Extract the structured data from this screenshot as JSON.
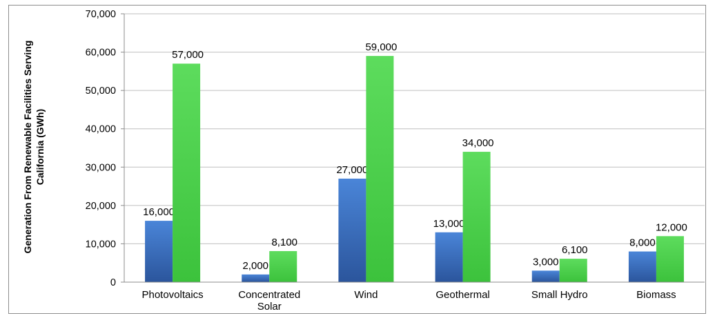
{
  "chart_data": {
    "type": "bar",
    "title": "",
    "ylabel": "Generation From Renewable Facilities Serving California (GWh)",
    "ylabel_lines": [
      "Generation From Renewable Facilities Serving",
      "California (GWh)"
    ],
    "categories": [
      "Photovoltaics",
      "Concentrated Solar",
      "Wind",
      "Geothermal",
      "Small Hydro",
      "Biomass"
    ],
    "category_label_lines": [
      [
        "Photovoltaics"
      ],
      [
        "Concentrated",
        "Solar"
      ],
      [
        "Wind"
      ],
      [
        "Geothermal"
      ],
      [
        "Small Hydro"
      ],
      [
        "Biomass"
      ]
    ],
    "series": [
      {
        "color": "#3a6fc4",
        "values": [
          16000,
          2000,
          27000,
          13000,
          3000,
          8000
        ],
        "labels": [
          "16,000",
          "2,000",
          "27,000",
          "13,000",
          "3,000",
          "8,000"
        ]
      },
      {
        "color": "#4ccf4c",
        "values": [
          57000,
          8100,
          59000,
          34000,
          6100,
          12000
        ],
        "labels": [
          "57,000",
          "8,100",
          "59,000",
          "34,000",
          "6,100",
          "12,000"
        ]
      }
    ],
    "ylim": [
      0,
      70000
    ],
    "yticks": [
      0,
      10000,
      20000,
      30000,
      40000,
      50000,
      60000,
      70000
    ],
    "ytick_labels": [
      "0",
      "10,000",
      "20,000",
      "30,000",
      "40,000",
      "50,000",
      "60,000",
      "70,000"
    ],
    "grid": true,
    "legend": "none"
  }
}
